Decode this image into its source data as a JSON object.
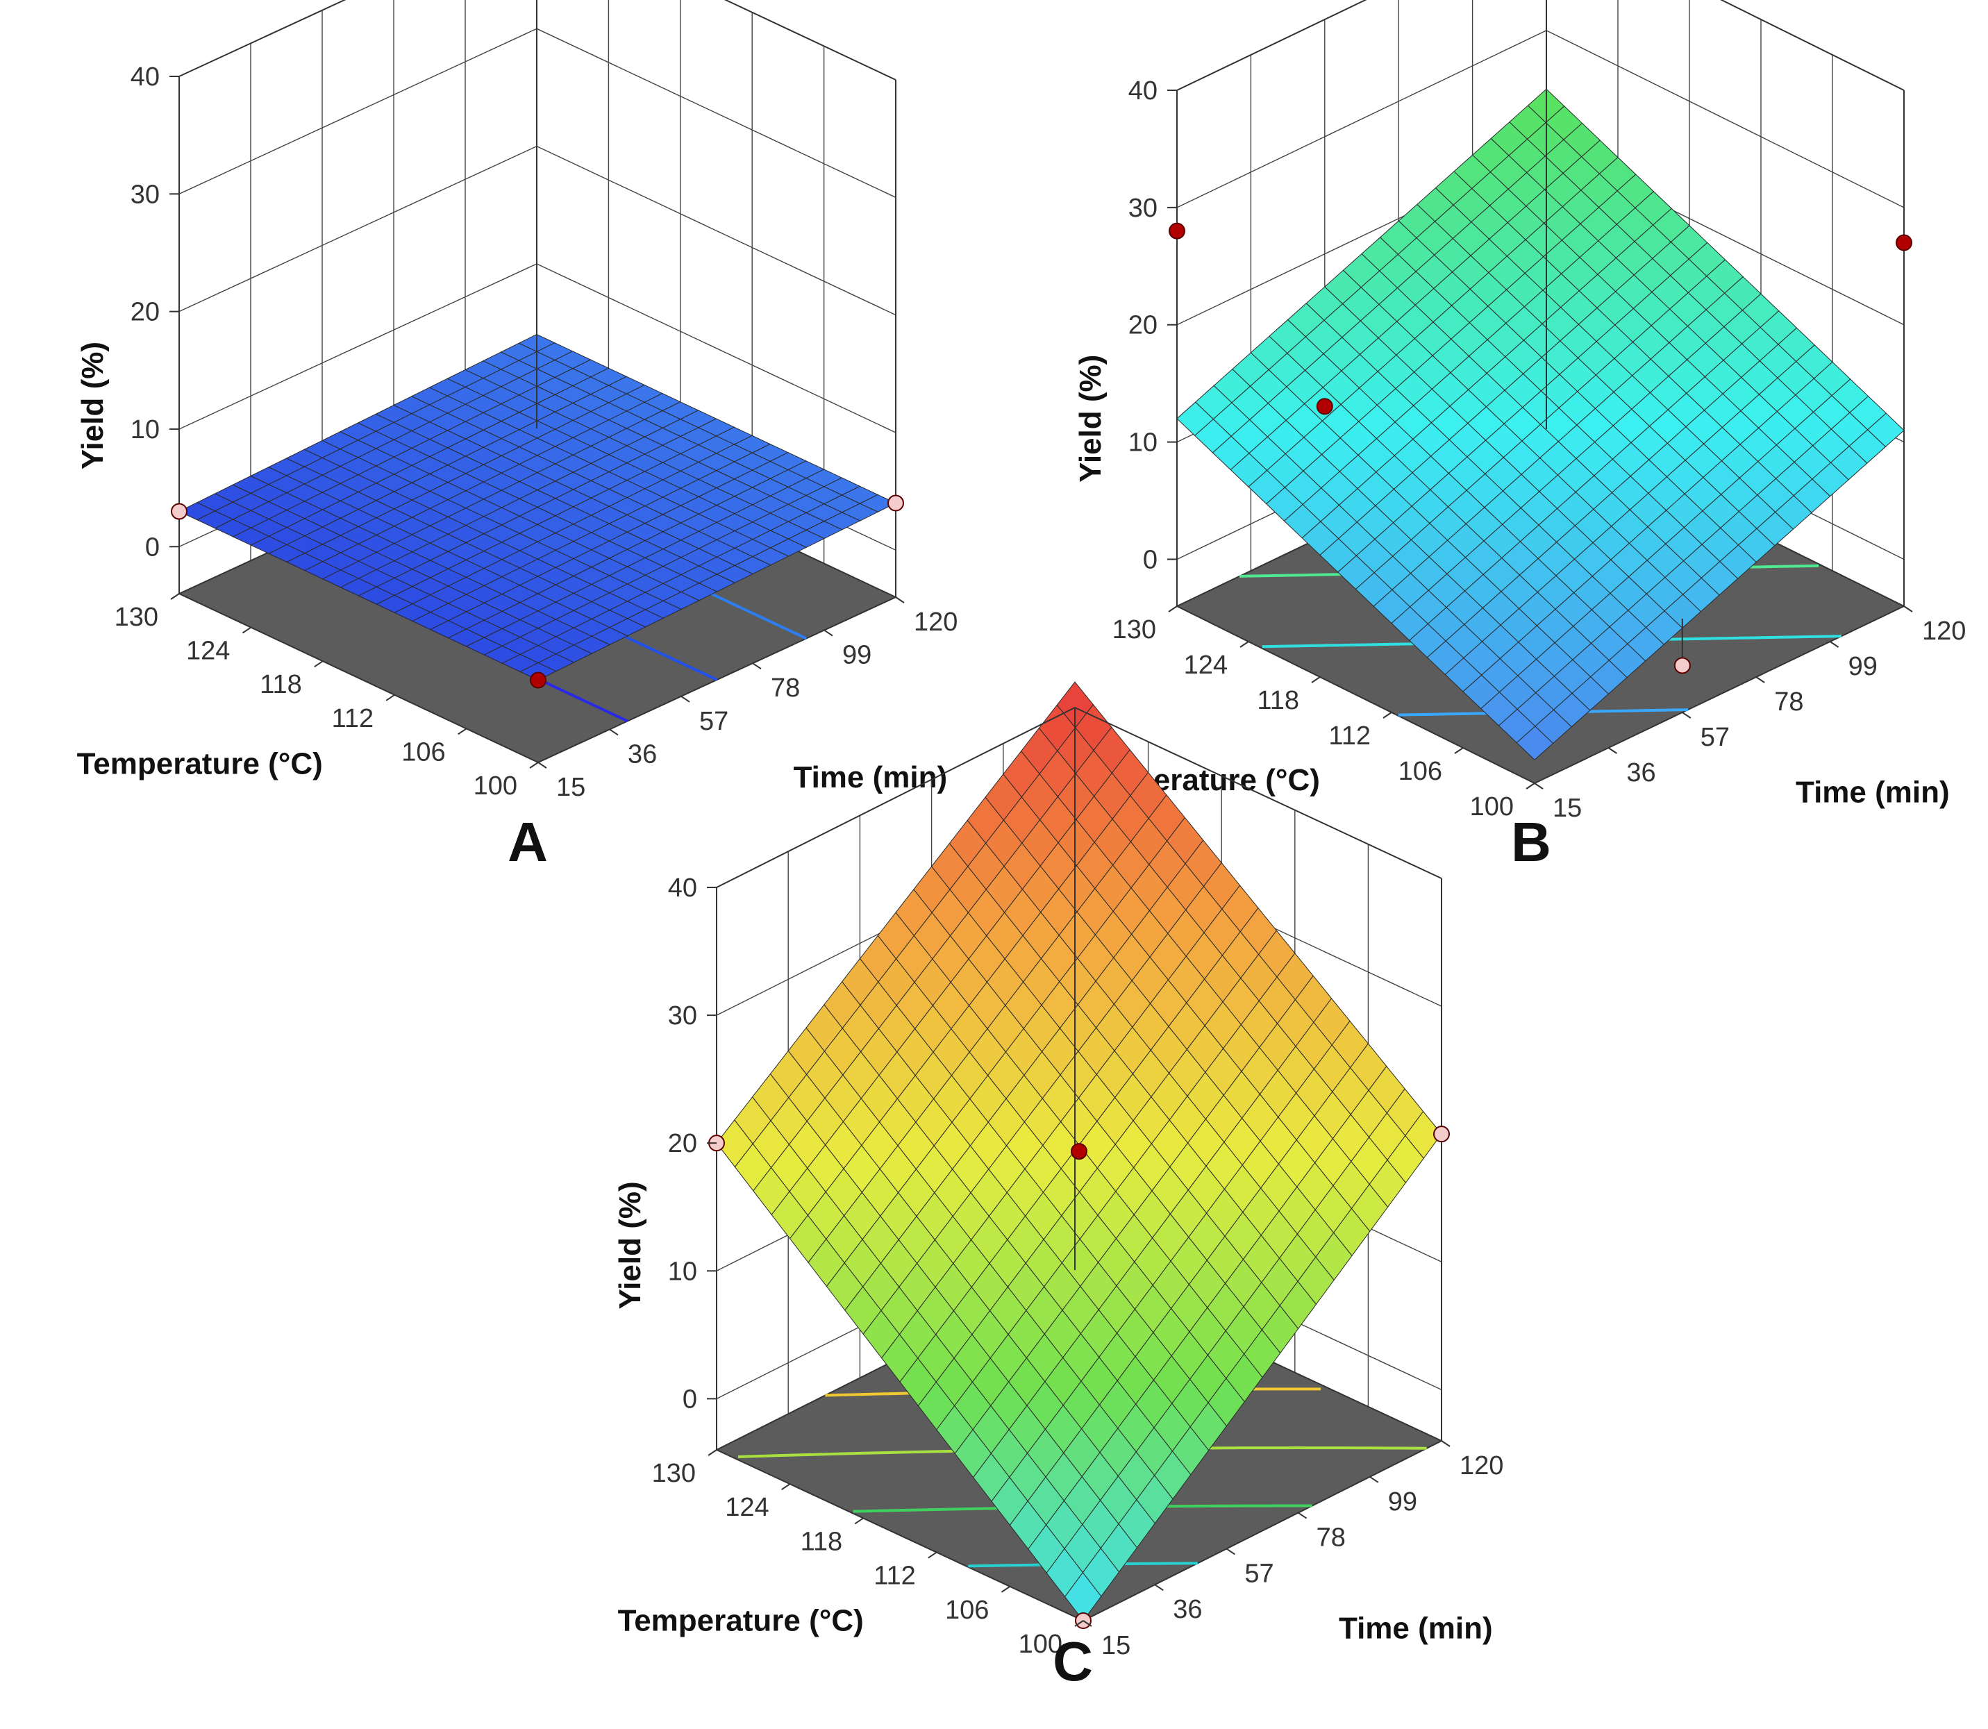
{
  "chart_data": [
    {
      "type": "surface3d",
      "panel": "A",
      "zlabel": "Yield (%)",
      "xlabel": "Temperature (°C)",
      "ylabel": "Time (min)",
      "z_ticks": [
        "0",
        "10",
        "20",
        "30",
        "40"
      ],
      "x_ticks": [
        "100",
        "106",
        "112",
        "118",
        "124",
        "130"
      ],
      "y_ticks": [
        "15",
        "36",
        "57",
        "78",
        "99",
        "120"
      ],
      "zlim": [
        -4,
        40
      ],
      "x_range": [
        100,
        130
      ],
      "y_range": [
        15,
        120
      ],
      "surface_corners": {
        "T100_t15": 3,
        "T130_t15": 3,
        "T100_t120": 4,
        "T130_t120": 4
      },
      "color_scale": {
        "low": "#1e1ed8",
        "high": "#4aa4f6",
        "zmin": 2,
        "zmax": 5
      },
      "contour_colors": [
        "#2a2ae6",
        "#2050ee",
        "#2c7ef2"
      ],
      "design_points": [
        {
          "temperature": 100,
          "time": 15,
          "yield": 3,
          "marker": "#b00000"
        },
        {
          "temperature": 130,
          "time": 15,
          "yield": 3,
          "marker": "#f4cccc"
        },
        {
          "temperature": 100,
          "time": 120,
          "yield": 4,
          "marker": "#f4cccc"
        }
      ]
    },
    {
      "type": "surface3d",
      "panel": "B",
      "zlabel": "Yield (%)",
      "xlabel": "Temperature (°C)",
      "ylabel": "Time (min)",
      "z_ticks": [
        "0",
        "10",
        "20",
        "30",
        "40"
      ],
      "x_ticks": [
        "100",
        "106",
        "112",
        "118",
        "124",
        "130"
      ],
      "y_ticks": [
        "15",
        "36",
        "57",
        "78",
        "99",
        "120"
      ],
      "zlim": [
        -4,
        40
      ],
      "x_range": [
        100,
        130
      ],
      "y_range": [
        15,
        120
      ],
      "surface_corners": {
        "T100_t15": -2,
        "T130_t15": 12,
        "T100_t120": 11,
        "T130_t120": 25
      },
      "color_scale": {
        "low": "#4a86ee",
        "mid": "#3cf0f0",
        "high": "#5ae05a",
        "zmin": -2,
        "zmax": 25
      },
      "contour_colors": [
        "#3aa8ff",
        "#30e0e0",
        "#50e890",
        "#6ae050"
      ],
      "design_points": [
        {
          "temperature": 130,
          "time": 15,
          "yield": 28,
          "surface": 12,
          "marker": "#b00000"
        },
        {
          "temperature": 100,
          "time": 120,
          "yield": 27,
          "surface": 11,
          "marker": "#b00000"
        },
        {
          "temperature": 130,
          "time": 57,
          "yield": 7,
          "surface": 7,
          "marker": "#b00000"
        },
        {
          "temperature": 100,
          "time": 57,
          "yield": 0,
          "surface": 4,
          "marker": "#f4cccc"
        }
      ]
    },
    {
      "type": "surface3d",
      "panel": "C",
      "zlabel": "Yield (%)",
      "xlabel": "Temperature (°C)",
      "ylabel": "Time (min)",
      "z_ticks": [
        "0",
        "10",
        "20",
        "30",
        "40"
      ],
      "x_ticks": [
        "100",
        "106",
        "112",
        "118",
        "124",
        "130"
      ],
      "y_ticks": [
        "15",
        "36",
        "57",
        "78",
        "99",
        "120"
      ],
      "zlim": [
        -4,
        40
      ],
      "x_range": [
        100,
        130
      ],
      "y_range": [
        15,
        120
      ],
      "surface_corners": {
        "T100_t15": -4,
        "T130_t15": 20,
        "T100_t120": 20,
        "T130_t120": 42
      },
      "color_scale": {
        "low": "#40e0f4",
        "mid1": "#70e050",
        "mid2": "#e8ec40",
        "mid3": "#f4a040",
        "high": "#e83a3a",
        "zmin": -4,
        "zmax": 42
      },
      "contour_colors": [
        "#28d0d0",
        "#40d060",
        "#a8e040",
        "#f0c830",
        "#f07020"
      ],
      "design_points": [
        {
          "temperature": 115,
          "time": 67.5,
          "yield": 19,
          "marker": "#b00000"
        },
        {
          "temperature": 130,
          "time": 15,
          "yield": 20,
          "marker": "#f4cccc"
        },
        {
          "temperature": 100,
          "time": 120,
          "yield": 20,
          "marker": "#f4cccc"
        },
        {
          "temperature": 100,
          "time": 15,
          "yield": -4,
          "marker": "#f4cccc"
        }
      ]
    }
  ]
}
